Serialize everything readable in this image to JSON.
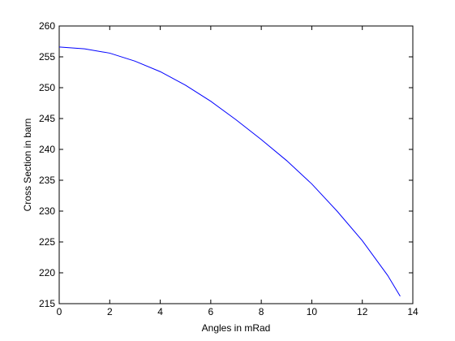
{
  "chart_data": {
    "type": "line",
    "xlabel": "Angles in mRad",
    "ylabel": "Cross Section in barn",
    "x": [
      0,
      1,
      2,
      3,
      4,
      5,
      6,
      7,
      8,
      9,
      10,
      11,
      12,
      13,
      13.5
    ],
    "series": [
      {
        "color": "#0000ff",
        "values": [
          256.6,
          256.3,
          255.6,
          254.3,
          252.6,
          250.4,
          247.8,
          244.8,
          241.6,
          238.2,
          234.4,
          230.0,
          225.2,
          219.6,
          216.2
        ]
      }
    ],
    "xlim": [
      0,
      14
    ],
    "xticks": [
      0,
      2,
      4,
      6,
      8,
      10,
      12,
      14
    ],
    "ylim": [
      215,
      260
    ],
    "yticks": [
      215,
      220,
      225,
      230,
      235,
      240,
      245,
      250,
      255,
      260
    ]
  }
}
